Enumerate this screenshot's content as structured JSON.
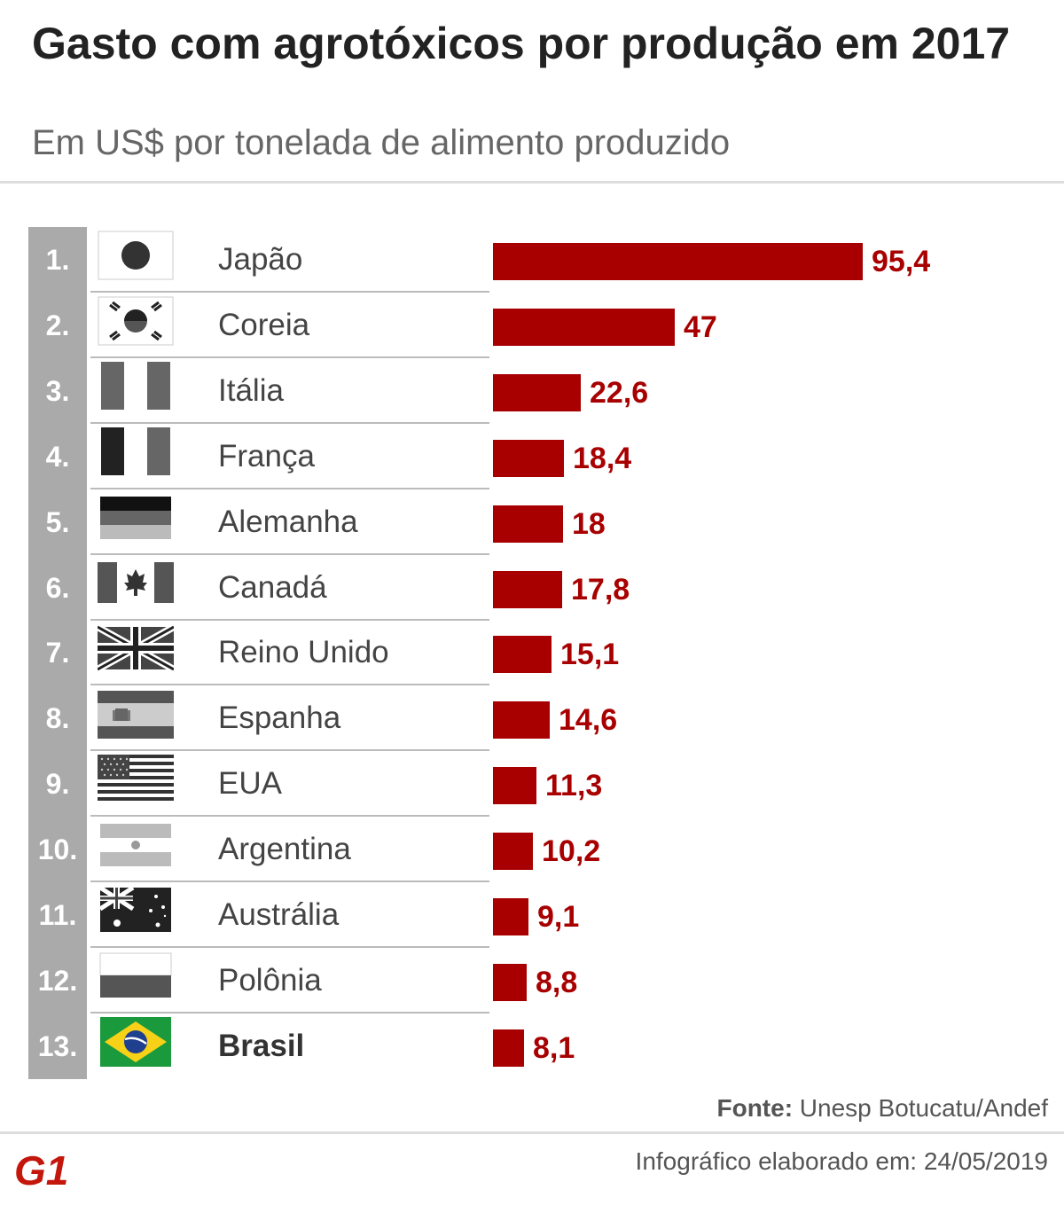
{
  "header": {
    "title": "Gasto com agrotóxicos por produção em 2017",
    "subtitle": "Em US$ por tonelada de alimento produzido"
  },
  "chart_data": {
    "type": "bar",
    "orientation": "horizontal",
    "title": "Gasto com agrotóxicos por produção em 2017",
    "subtitle": "Em US$ por tonelada de alimento produzido",
    "grid": false,
    "bar_color": "#a80000",
    "highlight": "Brasil",
    "ranks": [
      "1.",
      "2.",
      "3.",
      "4.",
      "5.",
      "6.",
      "7.",
      "8.",
      "9.",
      "10.",
      "11.",
      "12.",
      "13."
    ],
    "categories": [
      "Japão",
      "Coreia",
      "Itália",
      "França",
      "Alemanha",
      "Canadá",
      "Reino Unido",
      "Espanha",
      "EUA",
      "Argentina",
      "Austrália",
      "Polônia",
      "Brasil"
    ],
    "flags": [
      "japan-flag-icon",
      "south-korea-flag-icon",
      "italy-flag-icon",
      "france-flag-icon",
      "germany-flag-icon",
      "canada-flag-icon",
      "uk-flag-icon",
      "spain-flag-icon",
      "usa-flag-icon",
      "argentina-flag-icon",
      "australia-flag-icon",
      "poland-flag-icon",
      "brazil-flag-icon"
    ],
    "values": [
      95.4,
      47,
      22.6,
      18.4,
      18,
      17.8,
      15.1,
      14.6,
      11.3,
      10.2,
      9.1,
      8.8,
      8.1
    ],
    "value_labels": [
      "95,4",
      "47",
      "22,6",
      "18,4",
      "18",
      "17,8",
      "15,1",
      "14,6",
      "11,3",
      "10,2",
      "9,1",
      "8,8",
      "8,1"
    ],
    "xlim": [
      0,
      95.4
    ]
  },
  "footer": {
    "source_label": "Fonte:",
    "source_text": "Unesp Botucatu/Andef",
    "date_text": "Infográfico elaborado em: 24/05/2019",
    "logo_text": "G1",
    "logo_color": "#c4170c"
  }
}
